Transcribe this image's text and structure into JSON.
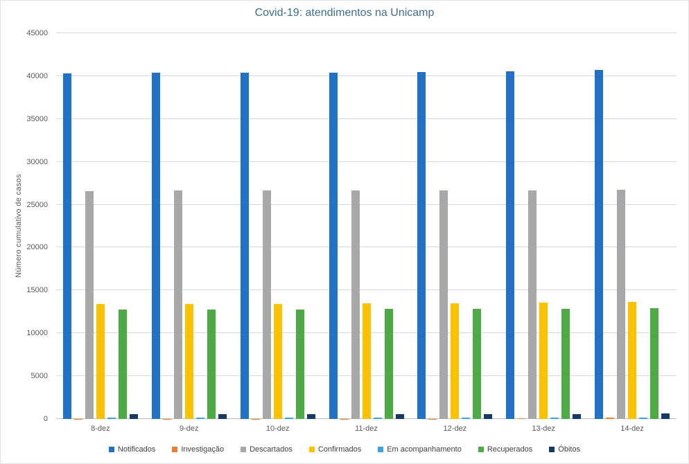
{
  "chart_data": {
    "type": "bar",
    "title": "Covid-19: atendimentos na Unicamp",
    "xlabel": "",
    "ylabel": "Número cumulativo de casos",
    "categories": [
      "8-dez",
      "9-dez",
      "10-dez",
      "11-dez",
      "12-dez",
      "13-dez",
      "14-dez"
    ],
    "ylim": [
      0,
      45000
    ],
    "ytick_step": 5000,
    "yticks": [
      0,
      5000,
      10000,
      15000,
      20000,
      25000,
      30000,
      35000,
      40000,
      45000
    ],
    "grid": true,
    "legend_position": "bottom",
    "series": [
      {
        "name": "Notificados",
        "color": "#1f72c6",
        "values": [
          40350,
          40360,
          40380,
          40400,
          40460,
          40550,
          40680
        ]
      },
      {
        "name": "Investigação",
        "color": "#ed7d31",
        "values": [
          20,
          20,
          20,
          25,
          30,
          120,
          140
        ]
      },
      {
        "name": "Descartados",
        "color": "#a8a8a8",
        "values": [
          26620,
          26650,
          26660,
          26670,
          26680,
          26700,
          26730
        ]
      },
      {
        "name": "Confirmados",
        "color": "#ffc000",
        "values": [
          13400,
          13420,
          13440,
          13460,
          13520,
          13580,
          13650
        ]
      },
      {
        "name": "Em acompanhamento",
        "color": "#3ea2e3",
        "values": [
          140,
          145,
          150,
          150,
          155,
          160,
          170
        ]
      },
      {
        "name": "Recuperados",
        "color": "#4dab46",
        "values": [
          12780,
          12790,
          12800,
          12810,
          12840,
          12870,
          12900
        ]
      },
      {
        "name": "Óbitos",
        "color": "#163a64",
        "values": [
          600,
          600,
          600,
          600,
          600,
          605,
          610
        ]
      }
    ],
    "colors": {
      "title_text": "#3d6e8f",
      "axis_text": "#595959",
      "gridline": "#d9d9d9",
      "axis_line": "#bfbfbf",
      "background": "#ffffff"
    }
  }
}
